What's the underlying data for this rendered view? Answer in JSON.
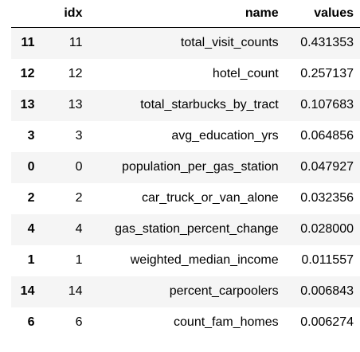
{
  "table": {
    "headers": {
      "index": "",
      "idx": "idx",
      "name": "name",
      "values": "values"
    },
    "rows": [
      {
        "index": "11",
        "idx": "11",
        "name": "total_visit_counts",
        "values": "0.431353"
      },
      {
        "index": "12",
        "idx": "12",
        "name": "hotel_count",
        "values": "0.257137"
      },
      {
        "index": "13",
        "idx": "13",
        "name": "total_starbucks_by_tract",
        "values": "0.107683"
      },
      {
        "index": "3",
        "idx": "3",
        "name": "avg_education_yrs",
        "values": "0.064856"
      },
      {
        "index": "0",
        "idx": "0",
        "name": "population_per_gas_station",
        "values": "0.047927"
      },
      {
        "index": "2",
        "idx": "2",
        "name": "car_truck_or_van_alone",
        "values": "0.032356"
      },
      {
        "index": "4",
        "idx": "4",
        "name": "gas_station_percent_change",
        "values": "0.028000"
      },
      {
        "index": "1",
        "idx": "1",
        "name": "weighted_median_income",
        "values": "0.011557"
      },
      {
        "index": "14",
        "idx": "14",
        "name": "percent_carpoolers",
        "values": "0.006843"
      },
      {
        "index": "6",
        "idx": "6",
        "name": "count_fam_homes",
        "values": "0.006274"
      }
    ]
  },
  "colors": {
    "stripe": "#f5f5f5",
    "background": "#ffffff",
    "header_rule": "#000000"
  }
}
